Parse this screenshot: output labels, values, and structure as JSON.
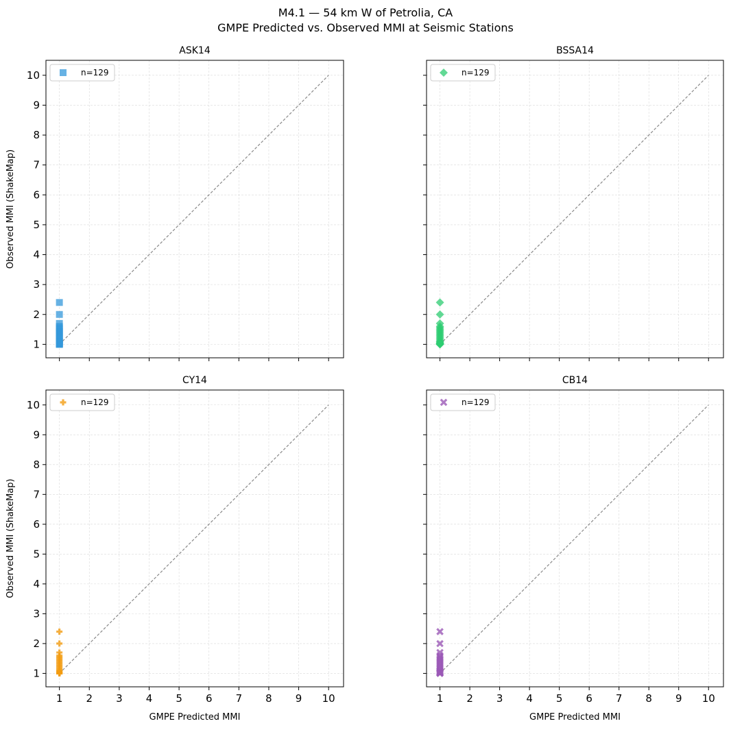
{
  "figure": {
    "title": "M4.1 — 54 km W of Petrolia, CA",
    "subtitle": "GMPE Predicted vs. Observed MMI at Seismic Stations"
  },
  "chart_data": [
    {
      "type": "scatter",
      "title": "ASK14",
      "xlabel": "",
      "ylabel": "Observed MMI (ShakeMap)",
      "xlim": [
        0.55,
        10.5
      ],
      "ylim": [
        0.55,
        10.5
      ],
      "xticks": [
        "1",
        "2",
        "3",
        "4",
        "5",
        "6",
        "7",
        "8",
        "9",
        "10"
      ],
      "yticks": [
        "1",
        "2",
        "3",
        "4",
        "5",
        "6",
        "7",
        "8",
        "9",
        "10"
      ],
      "show_xtick_labels": false,
      "show_ytick_labels": true,
      "grid": true,
      "legend": "top-left",
      "reference_line": [
        [
          1,
          1
        ],
        [
          10,
          10
        ]
      ],
      "series": [
        {
          "name": "n=129",
          "marker": "square",
          "color": "#3498db",
          "x": [
            1,
            1,
            1,
            1,
            1,
            1,
            1,
            1,
            1,
            1,
            1,
            1,
            1,
            1,
            1,
            1,
            1,
            1,
            1,
            1,
            1
          ],
          "y": [
            2.4,
            2.0,
            1.7,
            1.6,
            1.55,
            1.5,
            1.45,
            1.4,
            1.35,
            1.3,
            1.25,
            1.2,
            1.15,
            1.1,
            1.08,
            1.05,
            1.03,
            1.02,
            1.01,
            1.0,
            1.0
          ]
        }
      ]
    },
    {
      "type": "scatter",
      "title": "BSSA14",
      "xlabel": "",
      "ylabel": "",
      "xlim": [
        0.55,
        10.5
      ],
      "ylim": [
        0.55,
        10.5
      ],
      "xticks": [
        "1",
        "2",
        "3",
        "4",
        "5",
        "6",
        "7",
        "8",
        "9",
        "10"
      ],
      "yticks": [
        "1",
        "2",
        "3",
        "4",
        "5",
        "6",
        "7",
        "8",
        "9",
        "10"
      ],
      "show_xtick_labels": false,
      "show_ytick_labels": false,
      "grid": true,
      "legend": "top-left",
      "reference_line": [
        [
          1,
          1
        ],
        [
          10,
          10
        ]
      ],
      "series": [
        {
          "name": "n=129",
          "marker": "diamond",
          "color": "#2ecc71",
          "x": [
            1,
            1,
            1,
            1,
            1,
            1,
            1,
            1,
            1,
            1,
            1,
            1,
            1,
            1,
            1,
            1,
            1,
            1,
            1,
            1,
            1
          ],
          "y": [
            2.4,
            2.0,
            1.7,
            1.6,
            1.55,
            1.5,
            1.45,
            1.4,
            1.35,
            1.3,
            1.25,
            1.2,
            1.15,
            1.1,
            1.08,
            1.05,
            1.03,
            1.02,
            1.01,
            1.0,
            1.0
          ]
        }
      ]
    },
    {
      "type": "scatter",
      "title": "CY14",
      "xlabel": "GMPE Predicted MMI",
      "ylabel": "Observed MMI (ShakeMap)",
      "xlim": [
        0.55,
        10.5
      ],
      "ylim": [
        0.55,
        10.5
      ],
      "xticks": [
        "1",
        "2",
        "3",
        "4",
        "5",
        "6",
        "7",
        "8",
        "9",
        "10"
      ],
      "yticks": [
        "1",
        "2",
        "3",
        "4",
        "5",
        "6",
        "7",
        "8",
        "9",
        "10"
      ],
      "show_xtick_labels": true,
      "show_ytick_labels": true,
      "grid": true,
      "legend": "top-left",
      "reference_line": [
        [
          1,
          1
        ],
        [
          10,
          10
        ]
      ],
      "series": [
        {
          "name": "n=129",
          "marker": "plus",
          "color": "#f39c12",
          "x": [
            1,
            1,
            1,
            1,
            1,
            1,
            1,
            1,
            1,
            1,
            1,
            1,
            1,
            1,
            1,
            1,
            1,
            1,
            1,
            1,
            1
          ],
          "y": [
            2.4,
            2.0,
            1.7,
            1.6,
            1.55,
            1.5,
            1.45,
            1.4,
            1.35,
            1.3,
            1.25,
            1.2,
            1.15,
            1.1,
            1.08,
            1.05,
            1.03,
            1.02,
            1.01,
            1.0,
            1.0
          ]
        }
      ]
    },
    {
      "type": "scatter",
      "title": "CB14",
      "xlabel": "GMPE Predicted MMI",
      "ylabel": "",
      "xlim": [
        0.55,
        10.5
      ],
      "ylim": [
        0.55,
        10.5
      ],
      "xticks": [
        "1",
        "2",
        "3",
        "4",
        "5",
        "6",
        "7",
        "8",
        "9",
        "10"
      ],
      "yticks": [
        "1",
        "2",
        "3",
        "4",
        "5",
        "6",
        "7",
        "8",
        "9",
        "10"
      ],
      "show_xtick_labels": true,
      "show_ytick_labels": false,
      "grid": true,
      "legend": "top-left",
      "reference_line": [
        [
          1,
          1
        ],
        [
          10,
          10
        ]
      ],
      "series": [
        {
          "name": "n=129",
          "marker": "x",
          "color": "#9b59b6",
          "x": [
            1,
            1,
            1,
            1,
            1,
            1,
            1,
            1,
            1,
            1,
            1,
            1,
            1,
            1,
            1,
            1,
            1,
            1,
            1,
            1,
            1
          ],
          "y": [
            2.4,
            2.0,
            1.7,
            1.6,
            1.55,
            1.5,
            1.45,
            1.4,
            1.35,
            1.3,
            1.25,
            1.2,
            1.15,
            1.1,
            1.08,
            1.05,
            1.03,
            1.02,
            1.01,
            1.0,
            1.0
          ]
        }
      ]
    }
  ]
}
